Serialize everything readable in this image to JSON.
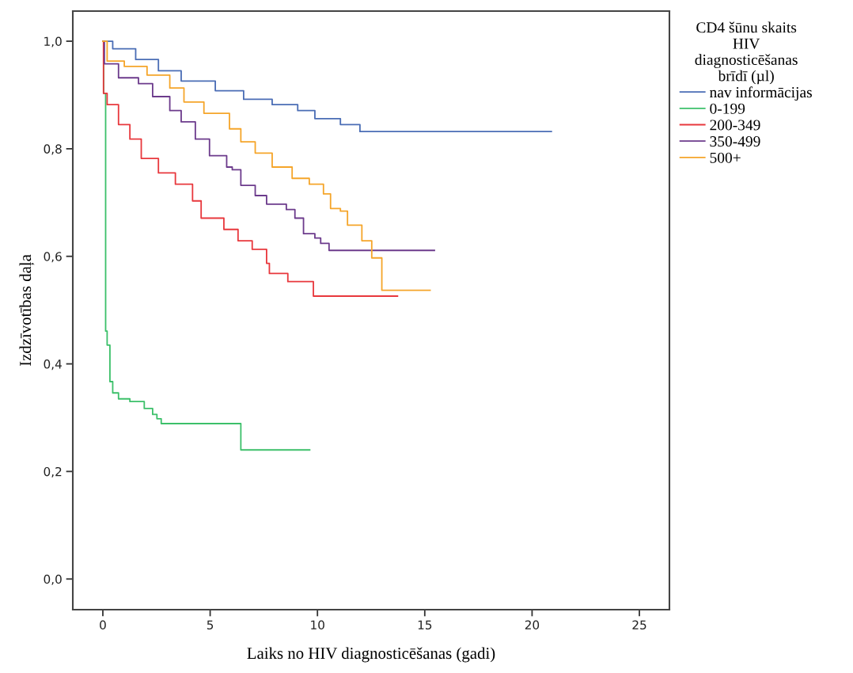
{
  "chart_data": {
    "type": "step",
    "xlabel": "Laiks no HIV diagnosticēšanas (gadi)",
    "ylabel": "Izdzīvotības daļa",
    "legend_title": "CD4 šūnu skaits\nHIV\ndiagnosticēšanas\nbrīdī (µl)",
    "xlim": [
      -1.4,
      26.4
    ],
    "xticks": [
      0,
      5,
      10,
      15,
      20,
      25
    ],
    "ylim": [
      -0.057,
      1.056
    ],
    "yticks": [
      {
        "value": 0,
        "label": "0,0"
      },
      {
        "value": 0.2,
        "label": "0,2"
      },
      {
        "value": 0.4,
        "label": "0,4"
      },
      {
        "value": 0.6,
        "label": "0,6"
      },
      {
        "value": 0.8,
        "label": "0,8"
      },
      {
        "value": 1.0,
        "label": "1,0"
      }
    ],
    "grid": false,
    "legend": "right",
    "marker": "none",
    "line_style": "solid",
    "series": [
      {
        "name": "nav informācijas",
        "color": "#4a6db5",
        "x": [
          0,
          0.46,
          1.53,
          2.59,
          3.65,
          5.24,
          6.56,
          7.89,
          9.08,
          9.88,
          11.07,
          11.98,
          20.9
        ],
        "values": [
          1.0,
          0.986,
          0.966,
          0.945,
          0.926,
          0.908,
          0.892,
          0.882,
          0.871,
          0.856,
          0.845,
          0.832,
          0.832
        ]
      },
      {
        "name": "0-199",
        "color": "#3cc06a",
        "x": [
          0,
          0.04,
          0.13,
          0.2,
          0.33,
          0.46,
          0.73,
          1.26,
          1.93,
          2.32,
          2.52,
          2.72,
          6.43,
          9.64
        ],
        "values": [
          1.0,
          0.903,
          0.461,
          0.435,
          0.367,
          0.346,
          0.335,
          0.33,
          0.317,
          0.306,
          0.298,
          0.289,
          0.24,
          0.24
        ]
      },
      {
        "name": "200-349",
        "color": "#e8383d",
        "x": [
          0,
          0.03,
          0.2,
          0.73,
          1.26,
          1.79,
          2.59,
          3.38,
          4.18,
          4.58,
          5.64,
          6.3,
          6.96,
          7.63,
          7.76,
          8.62,
          9.81,
          13.73
        ],
        "values": [
          1.0,
          0.903,
          0.882,
          0.845,
          0.818,
          0.782,
          0.755,
          0.734,
          0.703,
          0.671,
          0.65,
          0.629,
          0.613,
          0.587,
          0.568,
          0.553,
          0.526,
          0.526
        ]
      },
      {
        "name": "350-499",
        "color": "#6c3b8c",
        "x": [
          0,
          0.07,
          0.73,
          1.66,
          2.32,
          3.12,
          3.65,
          4.31,
          4.97,
          5.77,
          6.03,
          6.43,
          7.1,
          7.63,
          8.55,
          8.95,
          9.35,
          9.88,
          10.15,
          10.54,
          15.45
        ],
        "values": [
          1.0,
          0.958,
          0.932,
          0.921,
          0.897,
          0.871,
          0.85,
          0.818,
          0.787,
          0.766,
          0.761,
          0.732,
          0.713,
          0.697,
          0.687,
          0.671,
          0.642,
          0.634,
          0.624,
          0.611,
          0.611
        ]
      },
      {
        "name": "500+",
        "color": "#f5a52a",
        "x": [
          0,
          0.2,
          1.0,
          2.06,
          3.12,
          3.78,
          4.71,
          5.9,
          6.43,
          7.1,
          7.89,
          8.82,
          9.62,
          10.28,
          10.61,
          11.07,
          11.4,
          12.07,
          12.53,
          13.0,
          15.25
        ],
        "values": [
          1.0,
          0.963,
          0.953,
          0.937,
          0.913,
          0.887,
          0.866,
          0.837,
          0.813,
          0.792,
          0.766,
          0.745,
          0.734,
          0.716,
          0.689,
          0.684,
          0.658,
          0.629,
          0.597,
          0.537,
          0.537
        ]
      }
    ]
  }
}
